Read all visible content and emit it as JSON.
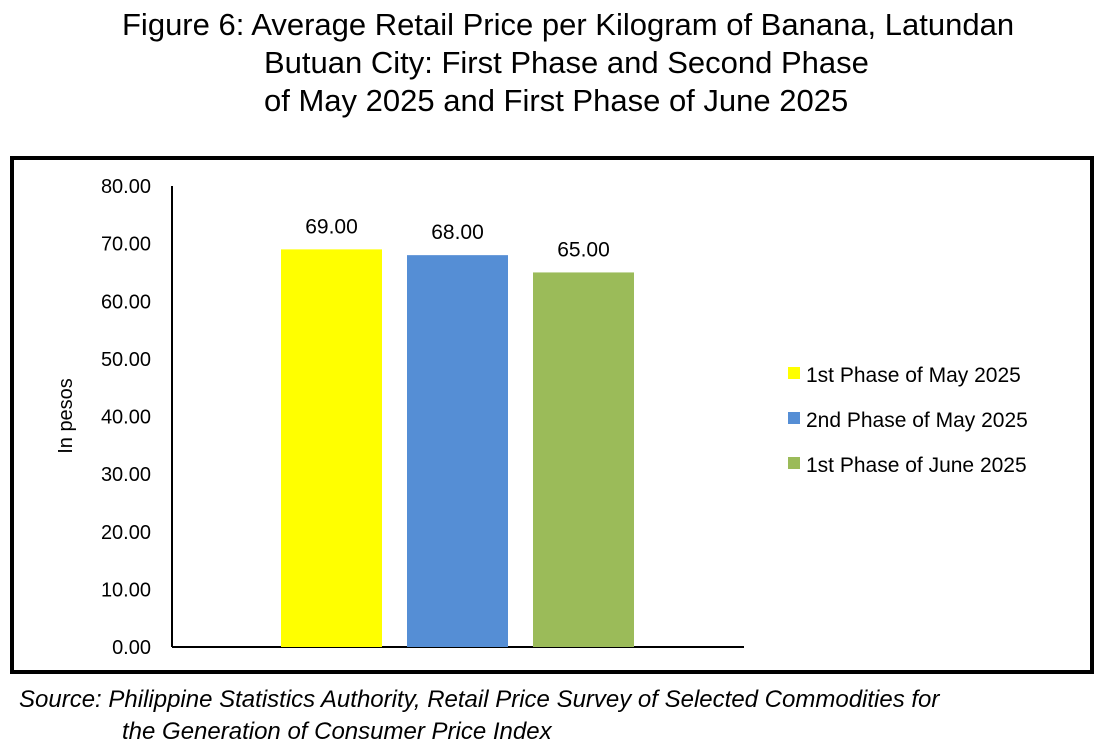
{
  "title": {
    "line1": "Figure 6: Average Retail Price per Kilogram of Banana, Latundan",
    "line2": "Butuan City: First Phase and Second Phase",
    "line3": "of May 2025 and First Phase of June 2025"
  },
  "source": {
    "line1": "Source: Philippine Statistics Authority, Retail Price Survey of Selected Commodities for",
    "line2": "the Generation of Consumer Price Index"
  },
  "chart_data": {
    "type": "bar",
    "title": "Figure 6: Average Retail Price per Kilogram of Banana, Latundan Butuan City: First Phase and Second Phase of May 2025 and First Phase of June 2025",
    "xlabel": "",
    "ylabel": "In pesos",
    "ylim": [
      0,
      80
    ],
    "yticks": [
      "0.00",
      "10.00",
      "20.00",
      "30.00",
      "40.00",
      "50.00",
      "60.00",
      "70.00",
      "80.00"
    ],
    "grid": false,
    "legend_position": "right",
    "series": [
      {
        "name": "1st Phase of May 2025",
        "value": 69.0,
        "label": "69.00",
        "color": "#FFFF00"
      },
      {
        "name": "2nd Phase of May 2025",
        "value": 68.0,
        "label": "68.00",
        "color": "#558ED5"
      },
      {
        "name": "1st Phase of June 2025",
        "value": 65.0,
        "label": "65.00",
        "color": "#9BBB59"
      }
    ]
  }
}
